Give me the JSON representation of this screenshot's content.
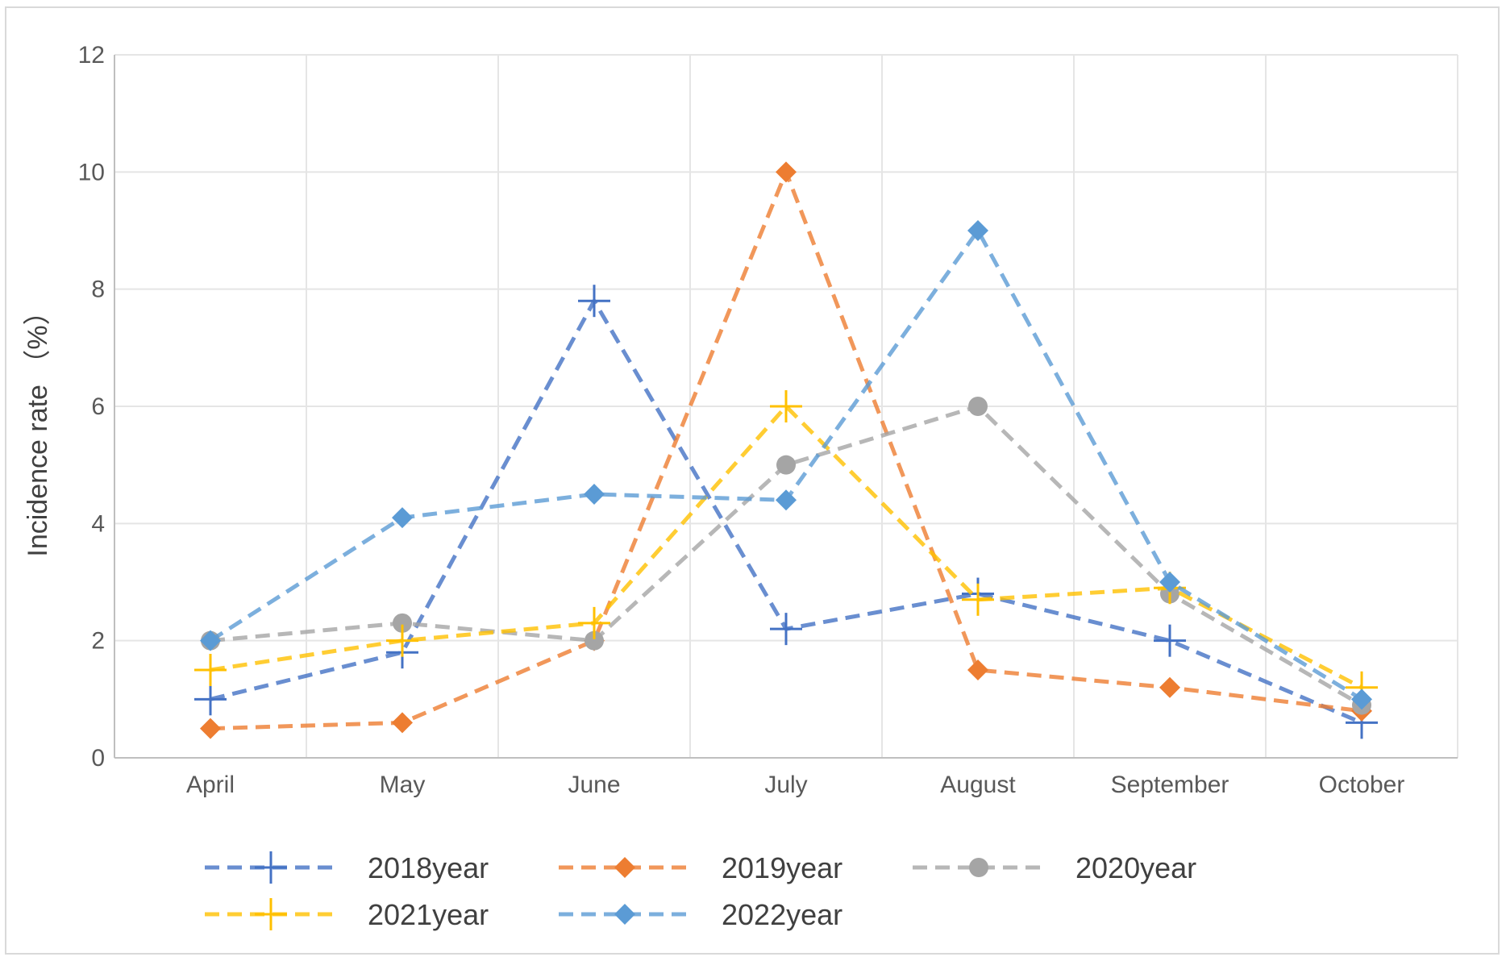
{
  "chart_data": {
    "type": "line",
    "title": "",
    "xlabel": "",
    "ylabel": "Incidence rate （%）",
    "ylim": [
      0,
      12
    ],
    "yticks": [
      "0",
      "2",
      "4",
      "6",
      "8",
      "10",
      "12"
    ],
    "categories": [
      "April",
      "May",
      "June",
      "July",
      "August",
      "September",
      "October"
    ],
    "grid": true,
    "legend_position": "bottom",
    "series": [
      {
        "name": "2018year",
        "values": [
          1.0,
          1.8,
          7.8,
          2.2,
          2.8,
          2.0,
          0.6
        ],
        "color": "#4472C4",
        "marker": "plus"
      },
      {
        "name": "2019year",
        "values": [
          0.5,
          0.6,
          2.0,
          10.0,
          1.5,
          1.2,
          0.8
        ],
        "color": "#ED7D31",
        "marker": "diamond"
      },
      {
        "name": "2020year",
        "values": [
          2.0,
          2.3,
          2.0,
          5.0,
          6.0,
          2.8,
          0.9
        ],
        "color": "#A5A5A5",
        "marker": "circle"
      },
      {
        "name": "2021year",
        "values": [
          1.5,
          2.0,
          2.3,
          6.0,
          2.7,
          2.9,
          1.2
        ],
        "color": "#FFC000",
        "marker": "plus"
      },
      {
        "name": "2022year",
        "values": [
          2.0,
          4.1,
          4.5,
          4.4,
          9.0,
          3.0,
          1.0
        ],
        "color": "#5B9BD5",
        "marker": "diamond"
      }
    ]
  }
}
